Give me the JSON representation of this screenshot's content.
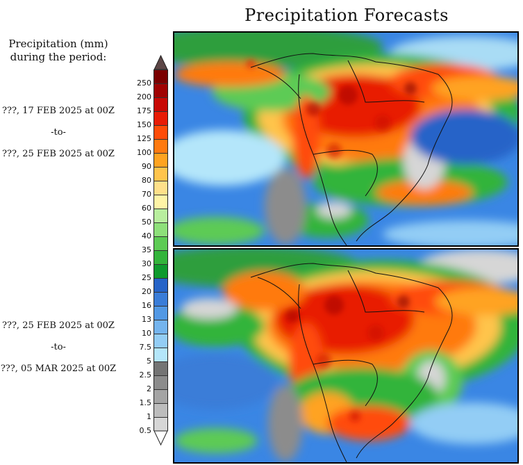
{
  "title": "Precipitation Forecasts",
  "legend": {
    "heading_line1": "Precipitation (mm)",
    "heading_line2": "during the period:",
    "levels": [
      "0.5",
      "1",
      "1.5",
      "2",
      "2.5",
      "5",
      "7.5",
      "10",
      "13",
      "16",
      "20",
      "25",
      "30",
      "35",
      "40",
      "50",
      "60",
      "70",
      "80",
      "90",
      "100",
      "125",
      "150",
      "175",
      "200",
      "250"
    ],
    "colors": [
      "#d6d6d6",
      "#bcbcbc",
      "#a4a4a4",
      "#8c8c8c",
      "#747474",
      "#b4e6fa",
      "#93cdf5",
      "#74b4ee",
      "#5298e4",
      "#3a7dd8",
      "#2664c8",
      "#0f9a2e",
      "#33b43b",
      "#5dcb54",
      "#8ee07a",
      "#b8ee9e",
      "#fff4a6",
      "#ffe08a",
      "#ffc44c",
      "#ffa320",
      "#ff7a10",
      "#ff4c08",
      "#e81c06",
      "#c80804",
      "#a00202",
      "#7a0000"
    ],
    "top_color": "#5c4646",
    "bottom_color": "#ffffff"
  },
  "periods": [
    {
      "start": "???, 17 FEB 2025 at 00Z",
      "sep": "-to-",
      "end": "???, 25 FEB 2025 at 00Z"
    },
    {
      "start": "???, 25 FEB 2025 at 00Z",
      "sep": "-to-",
      "end": "???, 05 MAR 2025 at 00Z"
    }
  ]
}
